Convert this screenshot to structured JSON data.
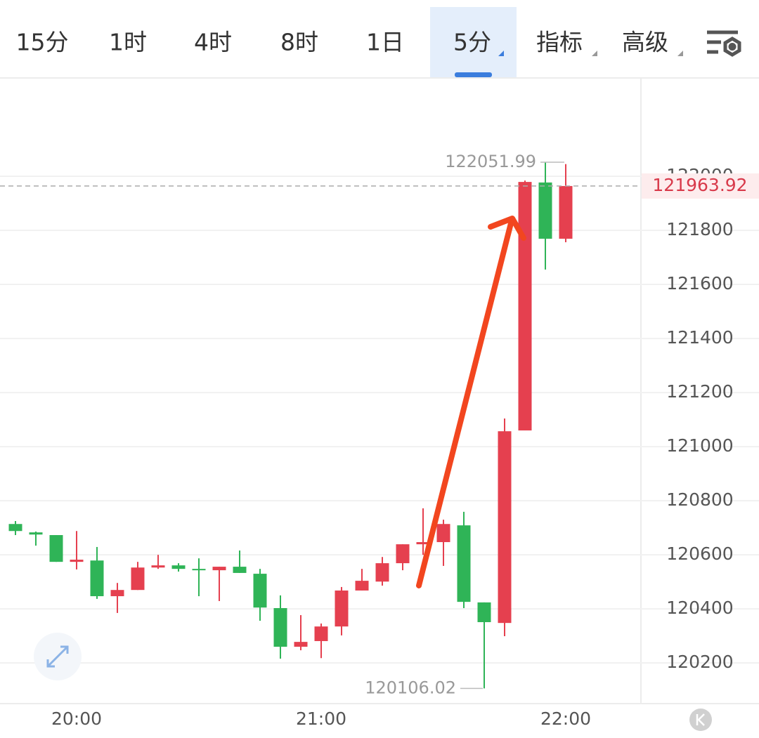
{
  "toolbar": {
    "tabs": [
      "15分",
      "1时",
      "4时",
      "8时",
      "1日",
      "5分",
      "指标",
      "高级"
    ],
    "active": 5
  },
  "chart_data": {
    "type": "candlestick",
    "categories": [
      null,
      null,
      null,
      "20:00",
      null,
      null,
      null,
      null,
      null,
      null,
      null,
      null,
      null,
      null,
      null,
      "21:00",
      null,
      null,
      null,
      null,
      null,
      null,
      null,
      null,
      null,
      null,
      null,
      "22:00"
    ],
    "open": [
      120714,
      120683,
      120673,
      120574,
      120579,
      120447,
      120470,
      120553,
      120561,
      120548,
      120543,
      120556,
      120530,
      120403,
      120260,
      120281,
      120335,
      120468,
      120501,
      120569,
      120639,
      120647,
      120709,
      120424,
      120348,
      121060,
      121977,
      121769
    ],
    "high": [
      120725,
      120686,
      120673,
      120688,
      120629,
      120496,
      120574,
      120600,
      120569,
      120587,
      120556,
      120616,
      120548,
      120450,
      120377,
      120346,
      120481,
      120548,
      120592,
      120639,
      120772,
      120730,
      120759,
      120424,
      121104,
      121984,
      122051.99,
      122045
    ],
    "low": [
      120673,
      120634,
      120574,
      120546,
      120437,
      120385,
      120470,
      120548,
      120538,
      120447,
      120429,
      120533,
      120356,
      120216,
      120247,
      120218,
      120302,
      120468,
      120486,
      120543,
      120600,
      120559,
      120403,
      120106.02,
      120299,
      121060,
      121655,
      121756
    ],
    "close": [
      120688,
      120675,
      120574,
      120582,
      120447,
      120470,
      120553,
      120561,
      120548,
      120543,
      120556,
      120533,
      120405,
      120260,
      120278,
      120335,
      120468,
      120504,
      120569,
      120639,
      120647,
      120714,
      120426,
      120351,
      121057,
      121979,
      121769,
      121963.92
    ],
    "up_color": "#e5404f",
    "down_color": "#2fb457",
    "ylim": [
      120055,
      122361
    ],
    "yticks": [
      120200,
      120400,
      120600,
      120800,
      121000,
      121200,
      121400,
      121600,
      121800,
      122000
    ],
    "grid": true
  }
}
